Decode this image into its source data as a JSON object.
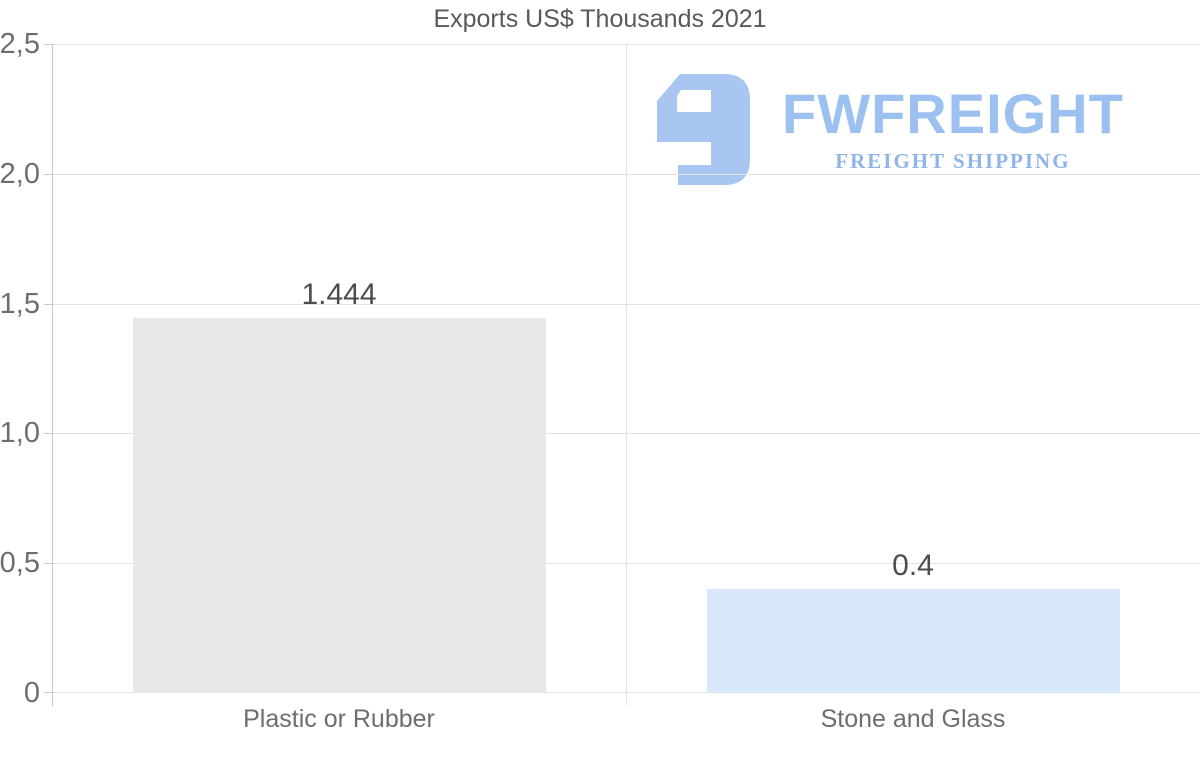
{
  "chart_data": {
    "type": "bar",
    "title": "Exports US$ Thousands 2021",
    "categories": [
      "Plastic or Rubber",
      "Stone and Glass"
    ],
    "values": [
      1.444,
      0.4
    ],
    "value_labels": [
      "1.444",
      "0.4"
    ],
    "bar_colors": [
      "#e8e8e8",
      "#d9e8fa"
    ],
    "ylim": [
      0,
      2.5
    ],
    "y_ticks": [
      {
        "value": 0,
        "label": "0"
      },
      {
        "value": 0.5,
        "label": "0,5"
      },
      {
        "value": 1.0,
        "label": "1,0"
      },
      {
        "value": 1.5,
        "label": "1,5"
      },
      {
        "value": 2.0,
        "label": "2,0"
      },
      {
        "value": 2.5,
        "label": "2,5"
      }
    ],
    "xlabel": "",
    "ylabel": "",
    "grid": "horizontal gridlines plus one vertical category separator",
    "legend": "none"
  },
  "logo": {
    "wordmark": "FWFREIGHT",
    "subtitle": "FREIGHT SHIPPING",
    "icon": "fwfreight-f-icon",
    "icon_color": "#a9c5f1",
    "wordmark_color": "#9cc0f0",
    "subtitle_color": "#8fb5ea"
  },
  "colors": {
    "background": "#ffffff",
    "grid": "#e3e3e3",
    "axis": "#c9c9c9",
    "title": "#595959",
    "tick_label": "#6e6e6e",
    "value_label": "#4d4d4d"
  }
}
